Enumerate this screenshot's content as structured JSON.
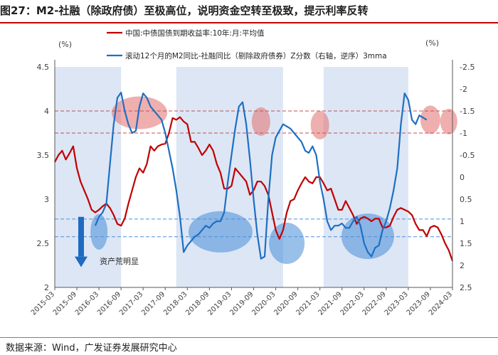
{
  "title": "图27：M2-社融（除政府债）至极高位，说明资金空转至极致，提示利率反转",
  "source": "数据来源：Wind，广发证券发展研究中心",
  "chart_data": {
    "type": "line",
    "left_unit": "(%)",
    "right_unit": "(%)",
    "left_ylim": [
      2,
      4.5
    ],
    "left_ticks": [
      "2",
      "2.5",
      "3",
      "3.5",
      "4",
      "4.5"
    ],
    "right_ylim": [
      -2.5,
      2.5
    ],
    "right_inverted": true,
    "right_ticks": [
      "-2.5",
      "-2",
      "-1.5",
      "-1",
      "-0.5",
      "0",
      "0.5",
      "1",
      "1.5",
      "2",
      "2.5"
    ],
    "x_ticks": [
      "2015-03",
      "2015-09",
      "2016-03",
      "2016-09",
      "2017-03",
      "2017-09",
      "2018-03",
      "2018-09",
      "2019-03",
      "2019-09",
      "2020-03",
      "2020-09",
      "2021-03",
      "2021-09",
      "2022-03",
      "2022-09",
      "2023-03",
      "2023-09",
      "2024-03"
    ],
    "x_range": [
      "2015-03",
      "2024-03"
    ],
    "annotation": "资产荒明显",
    "series": [
      {
        "name": "中国:中债国债到期收益率:10年:月:平均值",
        "color": "#c00000",
        "axis": "left",
        "points": [
          [
            "2015-03",
            3.42
          ],
          [
            "2015-04",
            3.5
          ],
          [
            "2015-05",
            3.55
          ],
          [
            "2015-06",
            3.45
          ],
          [
            "2015-07",
            3.52
          ],
          [
            "2015-08",
            3.6
          ],
          [
            "2015-09",
            3.35
          ],
          [
            "2015-10",
            3.2
          ],
          [
            "2015-11",
            3.1
          ],
          [
            "2015-12",
            3.0
          ],
          [
            "2016-01",
            2.88
          ],
          [
            "2016-02",
            2.85
          ],
          [
            "2016-03",
            2.88
          ],
          [
            "2016-04",
            2.92
          ],
          [
            "2016-05",
            2.95
          ],
          [
            "2016-06",
            2.9
          ],
          [
            "2016-07",
            2.82
          ],
          [
            "2016-08",
            2.72
          ],
          [
            "2016-09",
            2.7
          ],
          [
            "2016-10",
            2.78
          ],
          [
            "2016-11",
            2.95
          ],
          [
            "2016-12",
            3.1
          ],
          [
            "2017-01",
            3.25
          ],
          [
            "2017-02",
            3.35
          ],
          [
            "2017-03",
            3.3
          ],
          [
            "2017-04",
            3.4
          ],
          [
            "2017-05",
            3.6
          ],
          [
            "2017-06",
            3.55
          ],
          [
            "2017-07",
            3.6
          ],
          [
            "2017-08",
            3.62
          ],
          [
            "2017-09",
            3.63
          ],
          [
            "2017-10",
            3.75
          ],
          [
            "2017-11",
            3.92
          ],
          [
            "2017-12",
            3.9
          ],
          [
            "2018-01",
            3.93
          ],
          [
            "2018-02",
            3.88
          ],
          [
            "2018-03",
            3.85
          ],
          [
            "2018-04",
            3.65
          ],
          [
            "2018-05",
            3.65
          ],
          [
            "2018-06",
            3.58
          ],
          [
            "2018-07",
            3.5
          ],
          [
            "2018-08",
            3.55
          ],
          [
            "2018-09",
            3.62
          ],
          [
            "2018-10",
            3.55
          ],
          [
            "2018-11",
            3.4
          ],
          [
            "2018-12",
            3.3
          ],
          [
            "2019-01",
            3.12
          ],
          [
            "2019-02",
            3.12
          ],
          [
            "2019-03",
            3.15
          ],
          [
            "2019-04",
            3.35
          ],
          [
            "2019-05",
            3.3
          ],
          [
            "2019-06",
            3.25
          ],
          [
            "2019-07",
            3.2
          ],
          [
            "2019-08",
            3.05
          ],
          [
            "2019-09",
            3.1
          ],
          [
            "2019-10",
            3.2
          ],
          [
            "2019-11",
            3.2
          ],
          [
            "2019-12",
            3.15
          ],
          [
            "2020-01",
            3.05
          ],
          [
            "2020-02",
            2.85
          ],
          [
            "2020-03",
            2.65
          ],
          [
            "2020-04",
            2.55
          ],
          [
            "2020-05",
            2.65
          ],
          [
            "2020-06",
            2.85
          ],
          [
            "2020-07",
            2.98
          ],
          [
            "2020-08",
            3.0
          ],
          [
            "2020-09",
            3.1
          ],
          [
            "2020-10",
            3.18
          ],
          [
            "2020-11",
            3.25
          ],
          [
            "2020-12",
            3.2
          ],
          [
            "2021-01",
            3.18
          ],
          [
            "2021-02",
            3.25
          ],
          [
            "2021-03",
            3.25
          ],
          [
            "2021-04",
            3.18
          ],
          [
            "2021-05",
            3.1
          ],
          [
            "2021-06",
            3.12
          ],
          [
            "2021-07",
            3.0
          ],
          [
            "2021-08",
            2.88
          ],
          [
            "2021-09",
            2.88
          ],
          [
            "2021-10",
            2.98
          ],
          [
            "2021-11",
            2.9
          ],
          [
            "2021-12",
            2.82
          ],
          [
            "2022-01",
            2.72
          ],
          [
            "2022-02",
            2.78
          ],
          [
            "2022-03",
            2.8
          ],
          [
            "2022-04",
            2.78
          ],
          [
            "2022-05",
            2.75
          ],
          [
            "2022-06",
            2.78
          ],
          [
            "2022-07",
            2.78
          ],
          [
            "2022-08",
            2.68
          ],
          [
            "2022-09",
            2.68
          ],
          [
            "2022-10",
            2.7
          ],
          [
            "2022-11",
            2.8
          ],
          [
            "2022-12",
            2.88
          ],
          [
            "2023-01",
            2.9
          ],
          [
            "2023-02",
            2.88
          ],
          [
            "2023-03",
            2.86
          ],
          [
            "2023-04",
            2.82
          ],
          [
            "2023-05",
            2.72
          ],
          [
            "2023-06",
            2.65
          ],
          [
            "2023-07",
            2.65
          ],
          [
            "2023-08",
            2.58
          ],
          [
            "2023-09",
            2.68
          ],
          [
            "2023-10",
            2.7
          ],
          [
            "2023-11",
            2.68
          ],
          [
            "2023-12",
            2.6
          ],
          [
            "2024-01",
            2.5
          ],
          [
            "2024-02",
            2.42
          ],
          [
            "2024-03",
            2.3
          ]
        ]
      },
      {
        "name": "滚动12个月的M2同比-社融同比（剔除政府债券）Z分数（右轴，逆序）3mma",
        "color": "#1e6fc2",
        "axis": "right",
        "points": [
          [
            "2016-02",
            1.1
          ],
          [
            "2016-03",
            0.9
          ],
          [
            "2016-04",
            0.8
          ],
          [
            "2016-05",
            0.6
          ],
          [
            "2016-06",
            -0.3
          ],
          [
            "2016-07",
            -1.2
          ],
          [
            "2016-08",
            -1.8
          ],
          [
            "2016-09",
            -1.92
          ],
          [
            "2016-10",
            -1.5
          ],
          [
            "2016-11",
            -1.2
          ],
          [
            "2016-12",
            -1.0
          ],
          [
            "2017-01",
            -1.05
          ],
          [
            "2017-02",
            -1.6
          ],
          [
            "2017-03",
            -1.9
          ],
          [
            "2017-04",
            -1.8
          ],
          [
            "2017-05",
            -1.6
          ],
          [
            "2017-06",
            -1.5
          ],
          [
            "2017-07",
            -1.4
          ],
          [
            "2017-08",
            -1.3
          ],
          [
            "2017-09",
            -1.0
          ],
          [
            "2017-10",
            -0.6
          ],
          [
            "2017-11",
            -0.2
          ],
          [
            "2017-12",
            0.3
          ],
          [
            "2018-01",
            0.9
          ],
          [
            "2018-02",
            1.7
          ],
          [
            "2018-03",
            1.55
          ],
          [
            "2018-04",
            1.45
          ],
          [
            "2018-05",
            1.35
          ],
          [
            "2018-06",
            1.3
          ],
          [
            "2018-07",
            1.2
          ],
          [
            "2018-08",
            1.1
          ],
          [
            "2018-09",
            1.15
          ],
          [
            "2018-10",
            1.05
          ],
          [
            "2018-11",
            1.0
          ],
          [
            "2018-12",
            1.0
          ],
          [
            "2019-01",
            0.8
          ],
          [
            "2019-02",
            0.1
          ],
          [
            "2019-03",
            -0.5
          ],
          [
            "2019-04",
            -1.1
          ],
          [
            "2019-05",
            -1.6
          ],
          [
            "2019-06",
            -1.7
          ],
          [
            "2019-07",
            -1.2
          ],
          [
            "2019-08",
            -0.4
          ],
          [
            "2019-09",
            0.5
          ],
          [
            "2019-10",
            1.3
          ],
          [
            "2019-11",
            1.85
          ],
          [
            "2019-12",
            1.8
          ],
          [
            "2020-01",
            0.5
          ],
          [
            "2020-02",
            -0.5
          ],
          [
            "2020-03",
            -0.9
          ],
          [
            "2020-04",
            -1.05
          ],
          [
            "2020-05",
            -1.2
          ],
          [
            "2020-06",
            -1.15
          ],
          [
            "2020-07",
            -1.1
          ],
          [
            "2020-08",
            -1.0
          ],
          [
            "2020-09",
            -0.9
          ],
          [
            "2020-10",
            -0.8
          ],
          [
            "2020-11",
            -0.6
          ],
          [
            "2020-12",
            -0.55
          ],
          [
            "2021-01",
            -0.7
          ],
          [
            "2021-02",
            -0.5
          ],
          [
            "2021-03",
            0.1
          ],
          [
            "2021-04",
            0.5
          ],
          [
            "2021-05",
            1.0
          ],
          [
            "2021-06",
            1.2
          ],
          [
            "2021-07",
            1.1
          ],
          [
            "2021-08",
            1.1
          ],
          [
            "2021-09",
            1.05
          ],
          [
            "2021-10",
            1.15
          ],
          [
            "2021-11",
            1.15
          ],
          [
            "2021-12",
            1.0
          ],
          [
            "2022-01",
            0.9
          ],
          [
            "2022-02",
            1.1
          ],
          [
            "2022-03",
            1.5
          ],
          [
            "2022-04",
            1.7
          ],
          [
            "2022-05",
            1.8
          ],
          [
            "2022-06",
            1.6
          ],
          [
            "2022-07",
            1.55
          ],
          [
            "2022-08",
            1.2
          ],
          [
            "2022-09",
            1.0
          ],
          [
            "2022-10",
            0.7
          ],
          [
            "2022-11",
            0.3
          ],
          [
            "2022-12",
            -0.2
          ],
          [
            "2023-01",
            -1.2
          ],
          [
            "2023-02",
            -1.9
          ],
          [
            "2023-03",
            -1.75
          ],
          [
            "2023-04",
            -1.3
          ],
          [
            "2023-05",
            -1.2
          ],
          [
            "2023-06",
            -1.4
          ],
          [
            "2023-07",
            -1.35
          ],
          [
            "2023-08",
            -1.3
          ]
        ]
      }
    ]
  }
}
